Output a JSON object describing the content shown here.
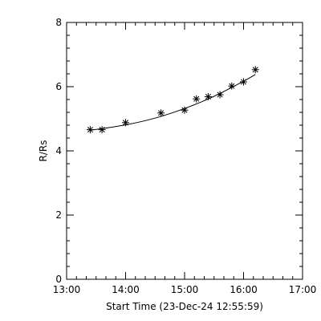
{
  "chart_data": {
    "type": "scatter",
    "xlabel": "Start Time (23-Dec-24 12:55:59)",
    "ylabel": "R/Rs",
    "xlim": [
      "13:00",
      "17:00"
    ],
    "ylim": [
      0,
      8
    ],
    "x_ticks": [
      "13:00",
      "14:00",
      "15:00",
      "16:00",
      "17:00"
    ],
    "x_minor_step_minutes": 10,
    "y_ticks": [
      0,
      2,
      4,
      6,
      8
    ],
    "y_minor_step": 0.4,
    "marker": "asterisk",
    "color": "#000000",
    "points": [
      {
        "x": "13:24",
        "y": 4.66
      },
      {
        "x": "13:36",
        "y": 4.66
      },
      {
        "x": "14:00",
        "y": 4.88
      },
      {
        "x": "14:36",
        "y": 5.18
      },
      {
        "x": "15:00",
        "y": 5.27
      },
      {
        "x": "15:12",
        "y": 5.62
      },
      {
        "x": "15:24",
        "y": 5.69
      },
      {
        "x": "15:36",
        "y": 5.75
      },
      {
        "x": "15:48",
        "y": 6.02
      },
      {
        "x": "16:00",
        "y": 6.15
      },
      {
        "x": "16:12",
        "y": 6.53
      }
    ],
    "fit": {
      "type": "curve",
      "x": [
        "13:24",
        "14:00",
        "14:30",
        "15:00",
        "15:30",
        "16:00",
        "16:12"
      ],
      "y": [
        4.64,
        4.81,
        5.02,
        5.32,
        5.7,
        6.17,
        6.38
      ]
    }
  }
}
